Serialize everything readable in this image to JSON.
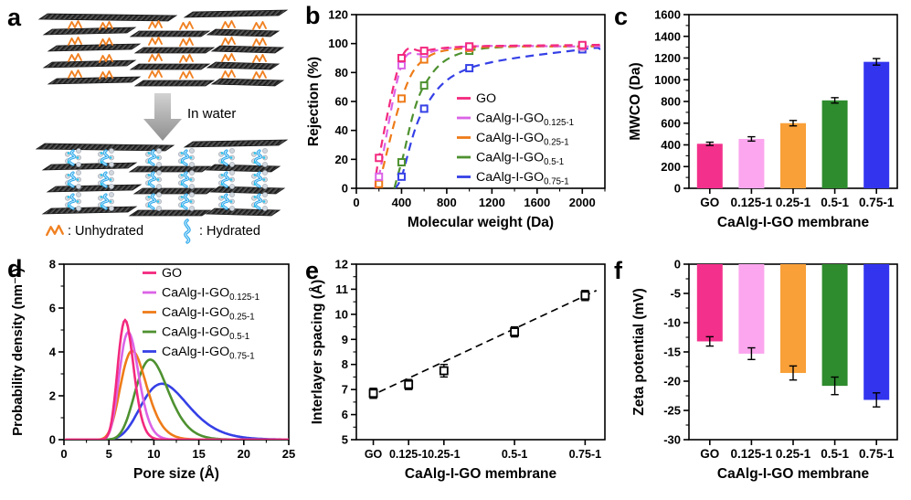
{
  "figure": {
    "background": "#ffffff"
  },
  "panels": {
    "a": {
      "letter": "a",
      "arrow_label": "In water",
      "legend": [
        {
          "icon": "unhydrated-squiggle-icon",
          "label": ": Unhydrated"
        },
        {
          "icon": "hydrated-squiggle-icon",
          "label": ": Hydrated"
        }
      ]
    },
    "b": {
      "letter": "b"
    },
    "c": {
      "letter": "c"
    },
    "d": {
      "letter": "d"
    },
    "e": {
      "letter": "e"
    },
    "f": {
      "letter": "f"
    }
  },
  "colors": {
    "bar": [
      "#F3308C",
      "#FBA6EE",
      "#F9A038",
      "#2E8B2E",
      "#3335EE"
    ],
    "line": [
      "#F3297E",
      "#DB63E6",
      "#EE7B18",
      "#4E9130",
      "#3540E6"
    ],
    "axis": "#000000",
    "error_bar": "#000000",
    "trend": "#000000",
    "arrow": "#ABABAB",
    "unhydrated": "#F08122",
    "hydrated": "#2FA8EC",
    "sheet": "#3A3A3A"
  },
  "chart_data": [
    {
      "id": "b",
      "type": "scatter-line",
      "xlabel": "Molecular weight (Da)",
      "ylabel": "Rejection (%)",
      "xlim": [
        0,
        2200
      ],
      "ylim": [
        0,
        120
      ],
      "xticks": [
        0,
        400,
        800,
        1200,
        1600,
        2000
      ],
      "xminor_step": 200,
      "yticks": [
        0,
        20,
        40,
        60,
        80,
        100,
        120
      ],
      "line_style": "dashed",
      "marker": "open-square",
      "legend_position": "inside-bottom-right",
      "series": [
        {
          "label": "GO",
          "sub": "",
          "color_key": 0,
          "x": [
            200,
            400,
            600,
            1000,
            2000
          ],
          "y": [
            21,
            90,
            95,
            98,
            99
          ]
        },
        {
          "label": "CaAlg-I-GO",
          "sub": "0.125-1",
          "color_key": 1,
          "x": [
            200,
            400,
            600,
            1000,
            2000
          ],
          "y": [
            8,
            85,
            93,
            98,
            98
          ]
        },
        {
          "label": "CaAlg-I-GO",
          "sub": "0.25-1",
          "color_key": 2,
          "x": [
            200,
            400,
            600,
            1000,
            2000
          ],
          "y": [
            3,
            62,
            89,
            97,
            98
          ]
        },
        {
          "label": "CaAlg-I-GO",
          "sub": "0.5-1",
          "color_key": 3,
          "x": [
            400,
            600,
            1000,
            2000
          ],
          "y": [
            18,
            71,
            95,
            98
          ]
        },
        {
          "label": "CaAlg-I-GO",
          "sub": "0.75-1",
          "color_key": 4,
          "x": [
            400,
            600,
            1000,
            2000
          ],
          "y": [
            8,
            55,
            83,
            96
          ]
        }
      ]
    },
    {
      "id": "c",
      "type": "bar",
      "xlabel": "CaAlg-I-GO membrane",
      "ylabel": "MWCO (Da)",
      "ylim": [
        0,
        1600
      ],
      "yticks": [
        0,
        200,
        400,
        600,
        800,
        1000,
        1200,
        1400,
        1600
      ],
      "yminor_step": 100,
      "categories": [
        "GO",
        "0.125-1",
        "0.25-1",
        "0.5-1",
        "0.75-1"
      ],
      "values": [
        410,
        455,
        600,
        810,
        1165
      ],
      "errors": [
        15,
        20,
        25,
        25,
        30
      ]
    },
    {
      "id": "d",
      "type": "line",
      "xlabel": "Pore size (Å)",
      "ylabel": "Probability density (nm⁻¹)",
      "xlim": [
        0,
        25
      ],
      "ylim": [
        0,
        8
      ],
      "xticks": [
        0,
        5,
        10,
        15,
        20,
        25
      ],
      "xminor_step": 2.5,
      "yticks": [
        0,
        2,
        4,
        6,
        8
      ],
      "yminor_step": 1,
      "legend_position": "inside-top-right",
      "curves": [
        {
          "label": "GO",
          "sub": "",
          "color_key": 0,
          "peak_x": 6.8,
          "peak_y": 5.45,
          "log_sigma": 0.13
        },
        {
          "label": "CaAlg-I-GO",
          "sub": "0.125-1",
          "color_key": 1,
          "peak_x": 7.15,
          "peak_y": 4.9,
          "log_sigma": 0.15
        },
        {
          "label": "CaAlg-I-GO",
          "sub": "0.25-1",
          "color_key": 2,
          "peak_x": 7.6,
          "peak_y": 4.05,
          "log_sigma": 0.19
        },
        {
          "label": "CaAlg-I-GO",
          "sub": "0.5-1",
          "color_key": 3,
          "peak_x": 9.6,
          "peak_y": 3.65,
          "log_sigma": 0.19
        },
        {
          "label": "CaAlg-I-GO",
          "sub": "0.75-1",
          "color_key": 4,
          "peak_x": 10.9,
          "peak_y": 2.55,
          "log_sigma": 0.24
        }
      ]
    },
    {
      "id": "e",
      "type": "scatter",
      "xlabel": "CaAlg-I-GO membrane",
      "ylabel": "Interlayer spacing (Å)",
      "xlim": [
        -0.06,
        0.82
      ],
      "ylim": [
        5,
        12
      ],
      "yticks": [
        5,
        6,
        7,
        8,
        9,
        10,
        11,
        12
      ],
      "yminor_step": 0.5,
      "x_positions": [
        0,
        0.125,
        0.25,
        0.5,
        0.75
      ],
      "categories": [
        "GO",
        "0.125-1",
        "0.25-1",
        "0.5-1",
        "0.75-1"
      ],
      "values": [
        6.85,
        7.2,
        7.75,
        9.3,
        10.75
      ],
      "errors": [
        0.2,
        0.2,
        0.25,
        0.2,
        0.2
      ],
      "marker": "open-square",
      "trend_line": {
        "style": "dashed",
        "x": [
          0.02,
          0.79
        ],
        "y": [
          6.9,
          10.95
        ]
      }
    },
    {
      "id": "f",
      "type": "bar",
      "xlabel": "CaAlg-I-GO membrane",
      "ylabel": "Zeta potential (mV)",
      "ylim": [
        -30,
        0
      ],
      "yticks": [
        0,
        -5,
        -10,
        -15,
        -20,
        -25,
        -30
      ],
      "yminor_step": 2.5,
      "categories": [
        "GO",
        "0.125-1",
        "0.25-1",
        "0.5-1",
        "0.75-1"
      ],
      "values": [
        -13.2,
        -15.3,
        -18.6,
        -20.8,
        -23.2
      ],
      "errors": [
        0.8,
        1.0,
        1.2,
        1.5,
        1.2
      ]
    }
  ]
}
